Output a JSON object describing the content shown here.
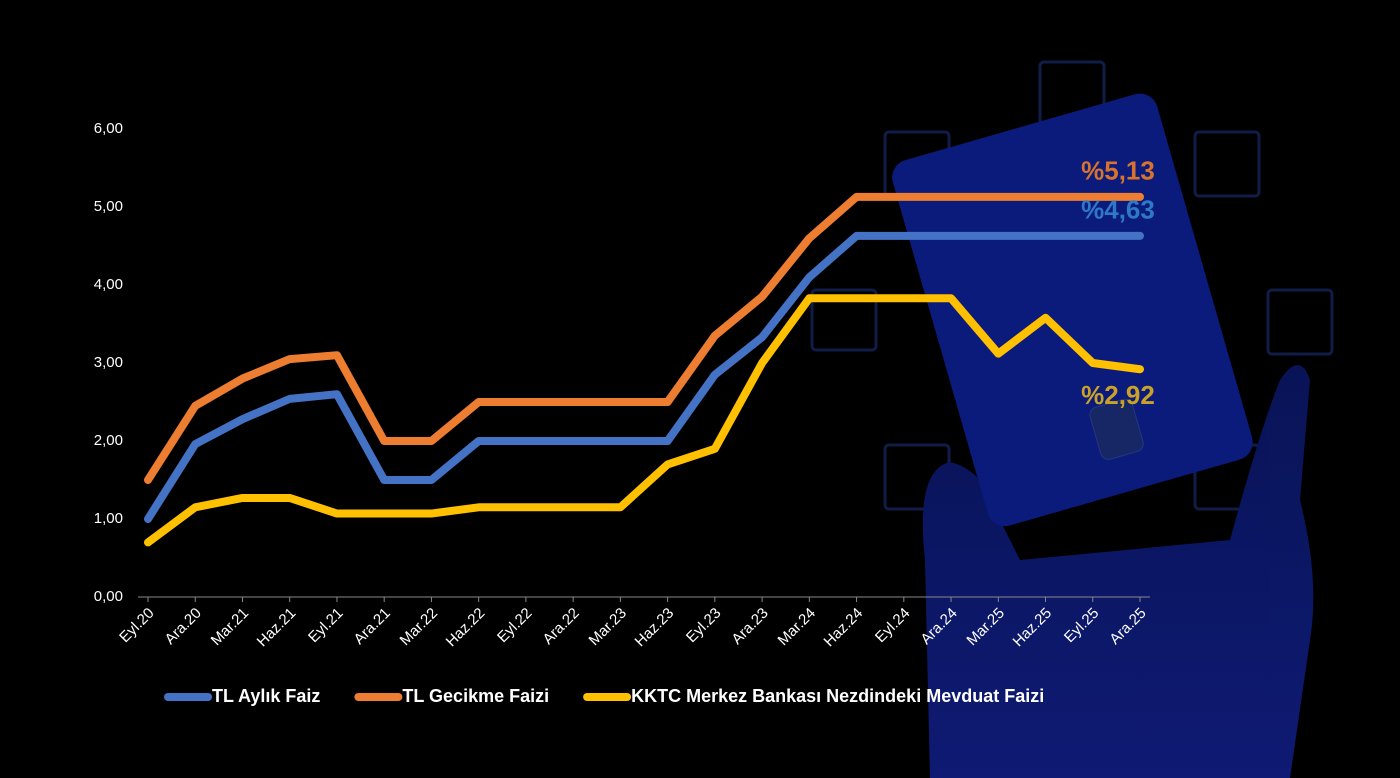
{
  "chart_data": {
    "type": "line",
    "categories": [
      "Eyl.20",
      "Ara.20",
      "Mar.21",
      "Haz.21",
      "Eyl.21",
      "Ara.21",
      "Mar.22",
      "Haz.22",
      "Eyl.22",
      "Ara.22",
      "Mar.23",
      "Haz.23",
      "Eyl.23",
      "Ara.23",
      "Mar.24",
      "Haz.24",
      "Eyl.24",
      "Ara.24",
      "Mar.25",
      "Haz.25",
      "Eyl.25",
      "Ara.25"
    ],
    "series": [
      {
        "name": "TL Aylık Faiz",
        "color": "#4472c4",
        "values": [
          1.0,
          1.96,
          2.28,
          2.54,
          2.6,
          1.5,
          1.5,
          2.0,
          2.0,
          2.0,
          2.0,
          2.0,
          2.85,
          3.33,
          4.1,
          4.63,
          4.63,
          4.63,
          4.63,
          4.63,
          4.63,
          4.63
        ]
      },
      {
        "name": "TL Gecikme Faizi",
        "color": "#ed7d31",
        "values": [
          1.5,
          2.45,
          2.8,
          3.05,
          3.1,
          2.0,
          2.0,
          2.5,
          2.5,
          2.5,
          2.5,
          2.5,
          3.35,
          3.85,
          4.6,
          5.13,
          5.13,
          5.13,
          5.13,
          5.13,
          5.13,
          5.13
        ]
      },
      {
        "name": "KKTC Merkez Bankası Nezdindeki Mevduat Faizi",
        "color": "#ffc000",
        "values": [
          0.7,
          1.15,
          1.27,
          1.27,
          1.07,
          1.07,
          1.07,
          1.15,
          1.15,
          1.15,
          1.15,
          1.7,
          1.9,
          3.0,
          3.83,
          3.83,
          3.83,
          3.83,
          3.12,
          3.58,
          3.0,
          2.92
        ]
      }
    ],
    "annotations": [
      {
        "text": "%5,13",
        "color": "#d8732f"
      },
      {
        "text": "%4,63",
        "color": "#2f78c8"
      },
      {
        "text": "%2,92",
        "color": "#c9a227"
      }
    ],
    "ylim": [
      0,
      6
    ],
    "yticks": [
      {
        "value": 0,
        "label": "0,00"
      },
      {
        "value": 1,
        "label": "1,00"
      },
      {
        "value": 2,
        "label": "2,00"
      },
      {
        "value": 3,
        "label": "3,00"
      },
      {
        "value": 4,
        "label": "4,00"
      },
      {
        "value": 5,
        "label": "5,00"
      },
      {
        "value": 6,
        "label": "6,00"
      }
    ],
    "legend": "bottom"
  }
}
